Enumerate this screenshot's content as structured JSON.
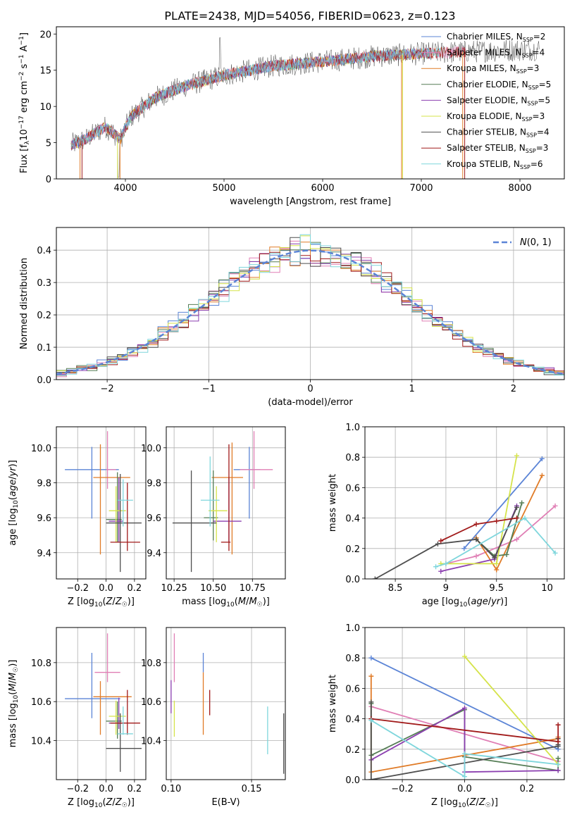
{
  "figure": {
    "title": "PLATE=2438, MJD=54056, FIBERID=0623, z=0.123"
  },
  "colors": {
    "Chabrier MILES": "#5b84d6",
    "Salpeter MILES": "#e07fb5",
    "Kroupa MILES": "#e07b27",
    "Chabrier ELODIE": "#557d55",
    "Salpeter ELODIE": "#8b3fb0",
    "Kroupa ELODIE": "#d5e34a",
    "Chabrier STELIB": "#4f4f4f",
    "Salpeter STELIB": "#a11a1a",
    "Kroupa STELIB": "#7fd6dc",
    "normal": "#5b84d6"
  },
  "legend_spectrum": [
    {
      "key": "Chabrier MILES",
      "label": "Chabrier MILES, N",
      "sub": "SSP",
      "tail": "=2"
    },
    {
      "key": "Salpeter MILES",
      "label": "Salpeter MILES, N",
      "sub": "SSP",
      "tail": "=4"
    },
    {
      "key": "Kroupa MILES",
      "label": "Kroupa MILES, N",
      "sub": "SSP",
      "tail": "=3"
    },
    {
      "key": "Chabrier ELODIE",
      "label": "Chabrier ELODIE, N",
      "sub": "SSP",
      "tail": "=5"
    },
    {
      "key": "Salpeter ELODIE",
      "label": "Salpeter ELODIE, N",
      "sub": "SSP",
      "tail": "=5"
    },
    {
      "key": "Kroupa ELODIE",
      "label": "Kroupa ELODIE, N",
      "sub": "SSP",
      "tail": "=3"
    },
    {
      "key": "Chabrier STELIB",
      "label": "Chabrier STELIB, N",
      "sub": "SSP",
      "tail": "=4"
    },
    {
      "key": "Salpeter STELIB",
      "label": "Salpeter STELIB, N",
      "sub": "SSP",
      "tail": "=3"
    },
    {
      "key": "Kroupa STELIB",
      "label": "Kroupa STELIB, N",
      "sub": "SSP",
      "tail": "=6"
    }
  ],
  "chart_data": [
    {
      "id": "spectrum",
      "type": "line",
      "xlabel": "wavelength [Angstrom, rest frame]",
      "ylabel": "Flux [fλ10⁻¹⁷ erg cm⁻² s⁻¹ A⁻¹]",
      "xlim": [
        3300,
        8450
      ],
      "ylim": [
        0,
        21
      ],
      "xticks": [
        4000,
        5000,
        6000,
        7000,
        8000
      ],
      "yticks": [
        0,
        5,
        10,
        15,
        20
      ],
      "continuum_x": [
        3450,
        3600,
        3800,
        3950,
        4050,
        4300,
        4600,
        5000,
        5500,
        6000,
        6500,
        7000,
        7500,
        8200
      ],
      "continuum_y": [
        4.7,
        5.5,
        7.2,
        5.5,
        8.5,
        11.2,
        12.8,
        14.3,
        15.6,
        16.2,
        16.9,
        17.3,
        17.6,
        17.9
      ]
    },
    {
      "id": "residuals",
      "type": "histogram",
      "xlabel": "(data-model)/error",
      "ylabel": "Normed distribution",
      "xlim": [
        -2.5,
        2.5
      ],
      "ylim": [
        0,
        0.47
      ],
      "xticks": [
        -2,
        -1,
        0,
        1,
        2
      ],
      "yticks": [
        0.0,
        0.1,
        0.2,
        0.3,
        0.4
      ],
      "legend": "N(0,1)"
    },
    {
      "id": "age_vs_Z",
      "type": "errorbar",
      "xlabel": "Z [log10(Z/Z☉)]",
      "ylabel": "age  [log10(age/yr)]",
      "xlim": [
        -0.35,
        0.28
      ],
      "ylim": [
        9.25,
        10.12
      ],
      "xticks": [
        -0.2,
        0.0,
        0.2
      ],
      "yticks": [
        9.4,
        9.6,
        9.8,
        10.0
      ],
      "points": [
        {
          "key": "Chabrier MILES",
          "x": -0.1,
          "y": 9.875,
          "xerr": [
            0.19,
            0.19
          ],
          "yerr": [
            0.28,
            0.13
          ]
        },
        {
          "key": "Salpeter MILES",
          "x": 0.01,
          "y": 9.875,
          "xerr": [
            0.01,
            0.06
          ],
          "yerr": [
            0.11,
            0.22
          ]
        },
        {
          "key": "Kroupa MILES",
          "x": -0.04,
          "y": 9.83,
          "xerr": [
            0.05,
            0.21
          ],
          "yerr": [
            0.44,
            0.19
          ]
        },
        {
          "key": "Chabrier ELODIE",
          "x": 0.08,
          "y": 9.59,
          "xerr": [
            0.08,
            0.03
          ],
          "yerr": [
            0.13,
            0.27
          ]
        },
        {
          "key": "Salpeter ELODIE",
          "x": 0.09,
          "y": 9.58,
          "xerr": [
            0.07,
            0.03
          ],
          "yerr": [
            0.12,
            0.25
          ]
        },
        {
          "key": "Kroupa ELODIE",
          "x": 0.07,
          "y": 9.64,
          "xerr": [
            0.05,
            0.07
          ],
          "yerr": [
            0.18,
            0.14
          ]
        },
        {
          "key": "Chabrier STELIB",
          "x": 0.1,
          "y": 9.57,
          "xerr": [
            0.1,
            0.15
          ],
          "yerr": [
            0.28,
            0.28
          ]
        },
        {
          "key": "Salpeter STELIB",
          "x": 0.15,
          "y": 9.46,
          "xerr": [
            0.12,
            0.09
          ],
          "yerr": [
            0.05,
            0.34
          ]
        },
        {
          "key": "Kroupa STELIB",
          "x": 0.12,
          "y": 9.7,
          "xerr": [
            0.04,
            0.07
          ],
          "yerr": [
            0.15,
            0.12
          ]
        }
      ]
    },
    {
      "id": "age_vs_mass",
      "type": "errorbar",
      "xlabel": "mass [log10(M/M☉)]",
      "ylabel": "",
      "xlim": [
        10.2,
        10.96
      ],
      "ylim": [
        9.25,
        10.12
      ],
      "xticks": [
        10.25,
        10.5,
        10.75
      ],
      "yticks": [
        9.4,
        9.6,
        9.8,
        10.0
      ],
      "points": [
        {
          "key": "Chabrier MILES",
          "x": 10.73,
          "y": 9.875,
          "xerr": [
            0.1,
            0.07
          ],
          "yerr": [
            0.28,
            0.13
          ]
        },
        {
          "key": "Salpeter MILES",
          "x": 10.76,
          "y": 9.875,
          "xerr": [
            0.09,
            0.12
          ],
          "yerr": [
            0.11,
            0.22
          ]
        },
        {
          "key": "Kroupa MILES",
          "x": 10.62,
          "y": 9.83,
          "xerr": [
            0.13,
            0.07
          ],
          "yerr": [
            0.44,
            0.2
          ]
        },
        {
          "key": "Chabrier ELODIE",
          "x": 10.5,
          "y": 9.6,
          "xerr": [
            0.06,
            0.03
          ],
          "yerr": [
            0.13,
            0.27
          ]
        },
        {
          "key": "Salpeter ELODIE",
          "x": 10.6,
          "y": 9.58,
          "xerr": [
            0.1,
            0.08
          ],
          "yerr": [
            0.12,
            0.25
          ]
        },
        {
          "key": "Kroupa ELODIE",
          "x": 10.52,
          "y": 9.64,
          "xerr": [
            0.05,
            0.07
          ],
          "yerr": [
            0.18,
            0.14
          ]
        },
        {
          "key": "Chabrier STELIB",
          "x": 10.36,
          "y": 9.57,
          "xerr": [
            0.12,
            0.16
          ],
          "yerr": [
            0.28,
            0.3
          ]
        },
        {
          "key": "Salpeter STELIB",
          "x": 10.6,
          "y": 9.46,
          "xerr": [
            0.05,
            0.01
          ],
          "yerr": [
            0.05,
            0.56
          ]
        },
        {
          "key": "Kroupa STELIB",
          "x": 10.48,
          "y": 9.7,
          "xerr": [
            0.06,
            0.06
          ],
          "yerr": [
            0.15,
            0.25
          ]
        }
      ]
    },
    {
      "id": "mass_weight_vs_age",
      "type": "line",
      "xlabel": "age  [log10(age/yr)]",
      "ylabel": "mass weight",
      "xlim": [
        8.2,
        10.17
      ],
      "ylim": [
        0,
        1.0
      ],
      "xticks": [
        8.5,
        9.0,
        9.5,
        10.0
      ],
      "yticks": [
        0.0,
        0.2,
        0.4,
        0.6,
        0.8,
        1.0
      ],
      "series": [
        {
          "key": "Chabrier MILES",
          "x": [
            9.18,
            9.95
          ],
          "y": [
            0.2,
            0.79
          ]
        },
        {
          "key": "Salpeter MILES",
          "x": [
            9.0,
            9.3,
            9.7,
            10.08
          ],
          "y": [
            0.1,
            0.15,
            0.26,
            0.48
          ]
        },
        {
          "key": "Kroupa MILES",
          "x": [
            9.3,
            9.5,
            9.95
          ],
          "y": [
            0.27,
            0.06,
            0.68
          ]
        },
        {
          "key": "Chabrier ELODIE",
          "x": [
            9.3,
            9.48,
            9.6,
            9.75
          ],
          "y": [
            0.26,
            0.15,
            0.16,
            0.5
          ]
        },
        {
          "key": "Salpeter ELODIE",
          "x": [
            8.95,
            9.48,
            9.7
          ],
          "y": [
            0.05,
            0.13,
            0.48
          ]
        },
        {
          "key": "Kroupa ELODIE",
          "x": [
            8.95,
            9.5,
            9.7
          ],
          "y": [
            0.1,
            0.1,
            0.81
          ]
        },
        {
          "key": "Chabrier STELIB",
          "x": [
            8.3,
            8.92,
            9.3,
            9.48,
            9.7
          ],
          "y": [
            0.0,
            0.23,
            0.26,
            0.14,
            0.47
          ]
        },
        {
          "key": "Salpeter STELIB",
          "x": [
            8.95,
            9.3,
            9.5,
            9.7
          ],
          "y": [
            0.25,
            0.36,
            0.38,
            0.4
          ]
        },
        {
          "key": "Kroupa STELIB",
          "x": [
            8.9,
            9.0,
            9.78,
            10.08
          ],
          "y": [
            0.08,
            0.1,
            0.4,
            0.17
          ]
        }
      ]
    },
    {
      "id": "mass_vs_Z",
      "type": "errorbar",
      "xlabel": "Z [log10(Z/Z☉)]",
      "ylabel": "mass [log10(M/M☉)]",
      "xlim": [
        -0.35,
        0.28
      ],
      "ylim": [
        10.2,
        10.98
      ],
      "xticks": [
        -0.2,
        0.0,
        0.2
      ],
      "yticks": [
        10.4,
        10.6,
        10.8
      ],
      "points": [
        {
          "key": "Chabrier MILES",
          "x": -0.1,
          "y": 10.615,
          "xerr": [
            0.19,
            0.2
          ],
          "yerr": [
            0.1,
            0.235
          ]
        },
        {
          "key": "Salpeter MILES",
          "x": 0.01,
          "y": 10.75,
          "xerr": [
            0.09,
            0.09
          ],
          "yerr": [
            0.05,
            0.2
          ]
        },
        {
          "key": "Kroupa MILES",
          "x": -0.04,
          "y": 10.625,
          "xerr": [
            0.05,
            0.22
          ],
          "yerr": [
            0.195,
            0.08
          ]
        },
        {
          "key": "Chabrier ELODIE",
          "x": 0.08,
          "y": 10.5,
          "xerr": [
            0.08,
            0.03
          ],
          "yerr": [
            0.09,
            0.1
          ]
        },
        {
          "key": "Salpeter ELODIE",
          "x": 0.09,
          "y": 10.49,
          "xerr": [
            0.07,
            0.03
          ],
          "yerr": [
            0.03,
            0.13
          ]
        },
        {
          "key": "Kroupa ELODIE",
          "x": 0.07,
          "y": 10.525,
          "xerr": [
            0.05,
            0.07
          ],
          "yerr": [
            0.095,
            0.08
          ]
        },
        {
          "key": "Chabrier STELIB",
          "x": 0.1,
          "y": 10.36,
          "xerr": [
            0.1,
            0.15
          ],
          "yerr": [
            0.12,
            0.18
          ]
        },
        {
          "key": "Salpeter STELIB",
          "x": 0.15,
          "y": 10.49,
          "xerr": [
            0.12,
            0.09
          ],
          "yerr": [
            0.06,
            0.17
          ]
        },
        {
          "key": "Kroupa STELIB",
          "x": 0.12,
          "y": 10.435,
          "xerr": [
            0.04,
            0.07
          ],
          "yerr": [
            0.005,
            0.14
          ]
        }
      ]
    },
    {
      "id": "mass_vs_ebv",
      "type": "errorbar",
      "xlabel": "E(B-V)",
      "ylabel": "",
      "xlim": [
        0.097,
        0.171
      ],
      "ylim": [
        10.2,
        10.98
      ],
      "xticks": [
        0.1,
        0.15
      ],
      "yticks": [
        10.4,
        10.6,
        10.8
      ],
      "points": [
        {
          "key": "Chabrier MILES",
          "x": 0.12,
          "y": 10.75,
          "xerr": [
            0,
            0
          ],
          "yerr": [
            0.0,
            0.1
          ]
        },
        {
          "key": "Salpeter MILES",
          "x": 0.102,
          "y": 10.75,
          "xerr": [
            0,
            0
          ],
          "yerr": [
            0.05,
            0.2
          ]
        },
        {
          "key": "Kroupa MILES",
          "x": 0.12,
          "y": 10.625,
          "xerr": [
            0,
            0
          ],
          "yerr": [
            0.195,
            0.125
          ]
        },
        {
          "key": "Chabrier ELODIE",
          "x": 0.1,
          "y": 10.6,
          "xerr": [
            0,
            0
          ],
          "yerr": [
            0.0,
            0.0
          ]
        },
        {
          "key": "Salpeter ELODIE",
          "x": 0.1,
          "y": 10.63,
          "xerr": [
            0,
            0
          ],
          "yerr": [
            0.09,
            0.08
          ]
        },
        {
          "key": "Kroupa ELODIE",
          "x": 0.102,
          "y": 10.525,
          "xerr": [
            0,
            0
          ],
          "yerr": [
            0.105,
            0.08
          ]
        },
        {
          "key": "Chabrier STELIB",
          "x": 0.17,
          "y": 10.38,
          "xerr": [
            0,
            0
          ],
          "yerr": [
            0.15,
            0.16
          ]
        },
        {
          "key": "Salpeter STELIB",
          "x": 0.124,
          "y": 10.6,
          "xerr": [
            0,
            0
          ],
          "yerr": [
            0.07,
            0.06
          ]
        },
        {
          "key": "Kroupa STELIB",
          "x": 0.16,
          "y": 10.455,
          "xerr": [
            0,
            0
          ],
          "yerr": [
            0.125,
            0.12
          ]
        }
      ]
    },
    {
      "id": "mass_weight_vs_Z",
      "type": "line",
      "xlabel": "Z [log10(Z/Z☉)]",
      "ylabel": "mass weight",
      "xlim": [
        -0.32,
        0.32
      ],
      "ylim": [
        0,
        1.0
      ],
      "xticks": [
        -0.2,
        0.0,
        0.2
      ],
      "yticks": [
        0.0,
        0.2,
        0.4,
        0.6,
        0.8,
        1.0
      ],
      "series": [
        {
          "key": "Chabrier MILES",
          "x": [
            -0.3,
            0.3,
            0.3
          ],
          "y": [
            0.8,
            0.2,
            0.22
          ]
        },
        {
          "key": "Salpeter MILES",
          "x": [
            -0.3,
            0.3
          ],
          "y": [
            0.48,
            0.12
          ]
        },
        {
          "key": "Kroupa MILES",
          "x": [
            -0.3,
            -0.3,
            0.3,
            0.3
          ],
          "y": [
            0.68,
            0.05,
            0.27,
            0.28
          ]
        },
        {
          "key": "Chabrier ELODIE",
          "x": [
            -0.3,
            -0.3,
            0.0,
            0.0,
            0.3,
            0.3
          ],
          "y": [
            0.5,
            0.16,
            0.46,
            0.15,
            0.06,
            0.14
          ]
        },
        {
          "key": "Salpeter ELODIE",
          "x": [
            -0.3,
            0.0,
            0.0,
            0.3
          ],
          "y": [
            0.13,
            0.47,
            0.05,
            0.06
          ]
        },
        {
          "key": "Kroupa ELODIE",
          "x": [
            0.0,
            0.3,
            0.3
          ],
          "y": [
            0.81,
            0.1,
            0.1
          ]
        },
        {
          "key": "Chabrier STELIB",
          "x": [
            -0.3,
            -0.3,
            0.3,
            0.3,
            0.3
          ],
          "y": [
            0.51,
            0.0,
            0.22,
            0.27,
            0.23
          ]
        },
        {
          "key": "Salpeter STELIB",
          "x": [
            -0.3,
            0.3,
            0.3
          ],
          "y": [
            0.4,
            0.25,
            0.36
          ]
        },
        {
          "key": "Kroupa STELIB",
          "x": [
            -0.3,
            0.0,
            0.0,
            0.3
          ],
          "y": [
            0.39,
            0.02,
            0.17,
            0.1
          ]
        }
      ]
    }
  ]
}
